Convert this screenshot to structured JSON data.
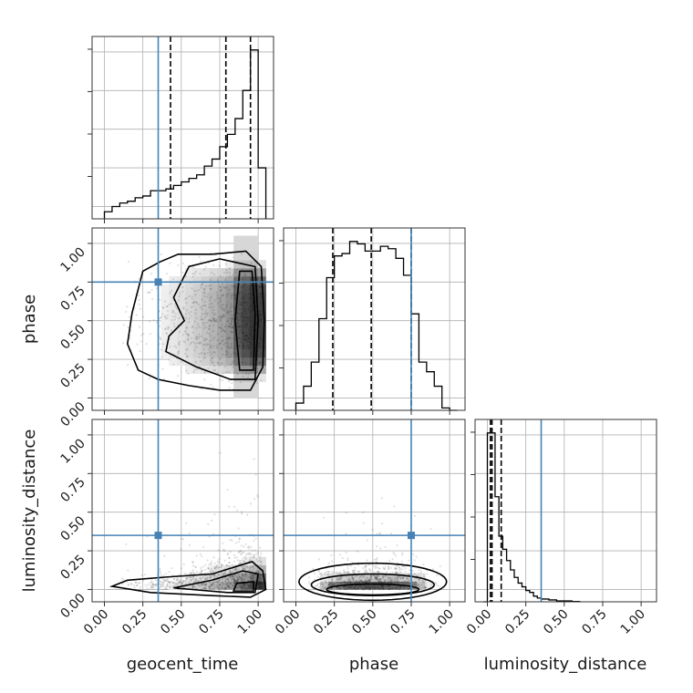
{
  "chart_data": {
    "type": "corner",
    "parameters": [
      "geocent_time",
      "phase",
      "luminosity_distance"
    ],
    "truth": {
      "geocent_time": 0.35,
      "phase": 0.75,
      "luminosity_distance": 0.35
    },
    "quantiles": {
      "geocent_time": [
        0.43,
        0.79,
        0.95
      ],
      "phase": [
        0.24,
        0.49,
        0.75
      ],
      "luminosity_distance": [
        0.02,
        0.03,
        0.09
      ]
    },
    "ranges": {
      "geocent_time": [
        -0.08,
        1.1
      ],
      "phase": [
        -0.08,
        1.1
      ],
      "luminosity_distance": [
        -0.08,
        1.1
      ]
    },
    "tick_labels": [
      "0.00",
      "0.25",
      "0.50",
      "0.75",
      "1.00"
    ],
    "histograms": {
      "geocent_time": {
        "edges": [
          0.0,
          0.05,
          0.1,
          0.15,
          0.2,
          0.25,
          0.3,
          0.35,
          0.4,
          0.45,
          0.5,
          0.55,
          0.6,
          0.65,
          0.7,
          0.75,
          0.8,
          0.85,
          0.9,
          0.95,
          1.0,
          1.05
        ],
        "counts": [
          4,
          7,
          9,
          10,
          12,
          13,
          16,
          16,
          17,
          19,
          21,
          23,
          25,
          30,
          34,
          41,
          48,
          57,
          73,
          96,
          29
        ]
      },
      "phase": {
        "edges": [
          0.0,
          0.05,
          0.1,
          0.15,
          0.2,
          0.25,
          0.3,
          0.35,
          0.4,
          0.45,
          0.5,
          0.55,
          0.6,
          0.65,
          0.7,
          0.75,
          0.8,
          0.85,
          0.9,
          0.95,
          1.0,
          1.05
        ],
        "counts": [
          3,
          10,
          20,
          38,
          55,
          64,
          65,
          70,
          69,
          66,
          66,
          68,
          67,
          63,
          56,
          40,
          20,
          16,
          10,
          1,
          0
        ]
      },
      "luminosity_distance": {
        "edges": [
          -0.025,
          0.0,
          0.025,
          0.05,
          0.075,
          0.1,
          0.125,
          0.15,
          0.175,
          0.2,
          0.225,
          0.25,
          0.275,
          0.3,
          0.325,
          0.35,
          0.4,
          0.45,
          0.5,
          0.55,
          0.6
        ],
        "counts": [
          0,
          90,
          90,
          56,
          35,
          28,
          22,
          17,
          13,
          10,
          8,
          6,
          5,
          3,
          2,
          1.5,
          1,
          0.5,
          0.5,
          0.2
        ]
      }
    },
    "grid": true,
    "series_color": "#000000",
    "truth_color": "#4682b4"
  }
}
